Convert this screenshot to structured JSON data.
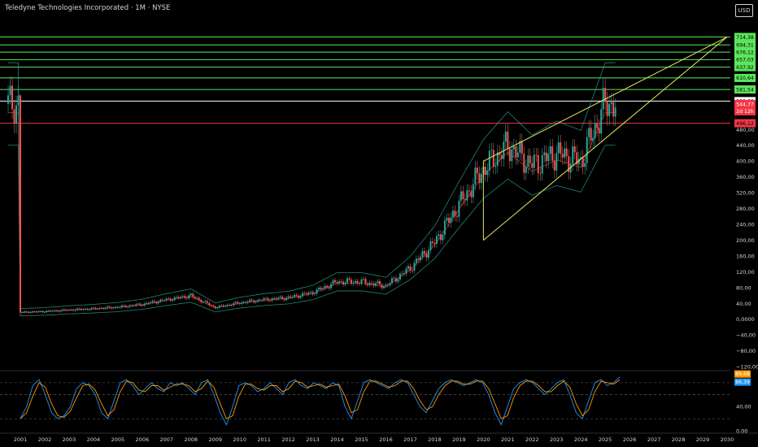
{
  "header": {
    "title": "Teledyne Technologies Incorporated · 1M · NYSE",
    "currency_button": "USD"
  },
  "chart_data": {
    "type": "candlestick",
    "symbol": "Teledyne Technologies Incorporated",
    "interval": "1M",
    "exchange": "NYSE",
    "x_years": [
      "2001",
      "2002",
      "2003",
      "2004",
      "2005",
      "2006",
      "2007",
      "2008",
      "2009",
      "2010",
      "2011",
      "2012",
      "2013",
      "2014",
      "2015",
      "2016",
      "2017",
      "2018",
      "2019",
      "2020",
      "2021",
      "2022",
      "2023",
      "2024",
      "2025",
      "2026",
      "2027",
      "2028",
      "2029",
      "2030"
    ],
    "price_axis": {
      "ticks": [
        "480,00",
        "440,00",
        "400,00",
        "360,00",
        "320,00",
        "280,00",
        "240,00",
        "200,00",
        "160,00",
        "120,00",
        "80,00",
        "40,00",
        "0,0000",
        "−40,00",
        "−80,00",
        "−120,00"
      ],
      "ylim": [
        -140,
        740
      ]
    },
    "horizontal_levels": [
      {
        "value": 714.38,
        "label": "714,38",
        "color": "#5ce65c"
      },
      {
        "value": 694.31,
        "label": "694,31",
        "color": "#5ce65c"
      },
      {
        "value": 676.12,
        "label": "676,12",
        "color": "#5ce65c"
      },
      {
        "value": 657.03,
        "label": "657,03",
        "color": "#5ce65c"
      },
      {
        "value": 637.92,
        "label": "637,92",
        "color": "#5ce65c"
      },
      {
        "value": 610.64,
        "label": "610,64",
        "color": "#5ce65c"
      },
      {
        "value": 581.54,
        "label": "581,54",
        "color": "#5ce65c"
      },
      {
        "value": 552.09,
        "label": "552,09",
        "color": "#ffffff"
      },
      {
        "value": 496.12,
        "label": "496,12",
        "color": "#f23645"
      }
    ],
    "last_price": {
      "value": 544.77,
      "label": "544,77",
      "countdown": "2d 12h",
      "color": "#f23645"
    },
    "candles": [
      [
        2001,
        18
      ],
      [
        2002,
        20
      ],
      [
        2003,
        24
      ],
      [
        2004,
        27
      ],
      [
        2005,
        31
      ],
      [
        2006,
        38
      ],
      [
        2007,
        50
      ],
      [
        2008,
        60
      ],
      [
        2009,
        30
      ],
      [
        2010,
        42
      ],
      [
        2011,
        50
      ],
      [
        2012,
        55
      ],
      [
        2013,
        68
      ],
      [
        2014,
        95
      ],
      [
        2015,
        95
      ],
      [
        2016,
        85
      ],
      [
        2017,
        130
      ],
      [
        2018,
        195
      ],
      [
        2019,
        290
      ],
      [
        2020,
        380
      ],
      [
        2021,
        440
      ],
      [
        2022,
        390
      ],
      [
        2023,
        420
      ],
      [
        2024,
        400
      ],
      [
        2025,
        545
      ]
    ],
    "trendlines": [
      {
        "from": [
          2020,
          400
        ],
        "to": [
          2030,
          714.38
        ],
        "color": "#e6e65c"
      },
      {
        "from": [
          2020,
          200
        ],
        "to": [
          2030,
          714.38
        ],
        "color": "#e6e65c"
      },
      {
        "from": [
          2020,
          400
        ],
        "to": [
          2020,
          200
        ],
        "color": "#e6e65c"
      }
    ],
    "oscillator": {
      "ticks": [
        "80,00",
        "40,00",
        "0,00"
      ],
      "ylim": [
        0,
        100
      ],
      "dashed_levels": [
        80,
        60,
        20
      ],
      "last_values": [
        {
          "label": "89,68",
          "color": "#ff9800"
        },
        {
          "label": "86,39",
          "color": "#2196f3"
        }
      ],
      "k_line": [
        20,
        40,
        75,
        85,
        60,
        30,
        20,
        25,
        40,
        70,
        80,
        75,
        60,
        30,
        20,
        50,
        80,
        85,
        75,
        60,
        70,
        80,
        70,
        65,
        80,
        75,
        80,
        70,
        60,
        80,
        85,
        60,
        30,
        10,
        40,
        75,
        80,
        75,
        65,
        70,
        80,
        70,
        60,
        80,
        85,
        75,
        70,
        80,
        75,
        70,
        80,
        75,
        40,
        20,
        50,
        80,
        85,
        80,
        75,
        70,
        80,
        85,
        80,
        60,
        40,
        30,
        50,
        70,
        80,
        85,
        80,
        75,
        80,
        85,
        80,
        60,
        30,
        10,
        40,
        70,
        80,
        85,
        80,
        70,
        60,
        70,
        80,
        85,
        60,
        30,
        20,
        50,
        80,
        85,
        75,
        80,
        89.68
      ]
    }
  }
}
